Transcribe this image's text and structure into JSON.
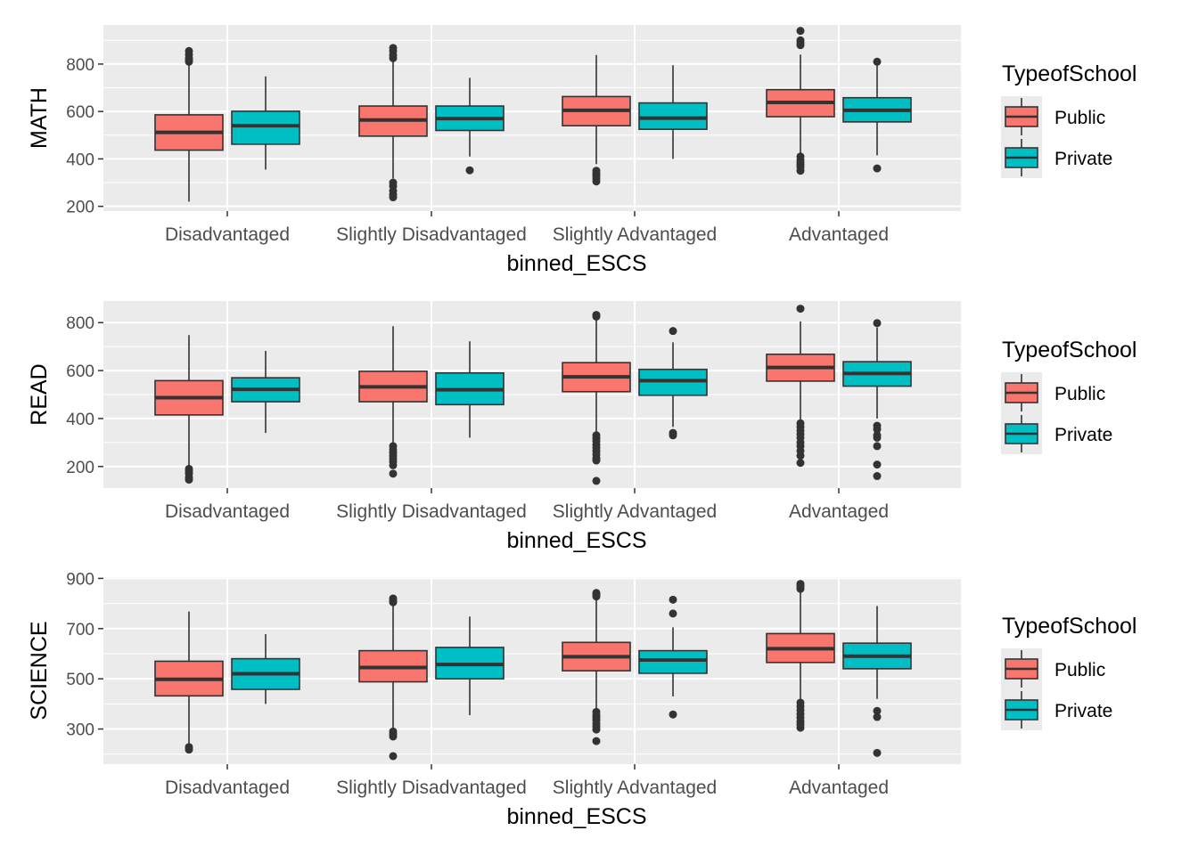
{
  "colors": {
    "panel_bg": "#EBEBEB",
    "grid_major": "#FFFFFF",
    "box_line": "#333333",
    "tick_text": "#4D4D4D",
    "title_text": "#000000",
    "series": {
      "Public": "#F8766D",
      "Private": "#00BFC4"
    }
  },
  "chart_data": [
    {
      "type": "boxplot",
      "ylabel": "MATH",
      "xlabel": "binned_ESCS",
      "categories": [
        "Disadvantaged",
        "Slightly Disadvantaged",
        "Slightly Advantaged",
        "Advantaged"
      ],
      "ylim": [
        180,
        965
      ],
      "yticks": [
        200,
        400,
        600,
        800
      ],
      "grid": true,
      "legend": {
        "title": "TypeofSchool",
        "placement": "right",
        "entries": [
          "Public",
          "Private"
        ]
      },
      "series": [
        {
          "name": "Public",
          "boxes": [
            {
              "min": 220,
              "q1": 437,
              "median": 512,
              "q3": 586,
              "max": 803,
              "outliers": [
                810,
                818,
                825,
                840,
                855
              ]
            },
            {
              "min": 318,
              "q1": 496,
              "median": 564,
              "q3": 623,
              "max": 818,
              "outliers": [
                825,
                838,
                855,
                868,
                300,
                285,
                265,
                250,
                238
              ]
            },
            {
              "min": 378,
              "q1": 540,
              "median": 605,
              "q3": 663,
              "max": 838,
              "outliers": [
                350,
                340,
                330,
                318,
                305
              ]
            },
            {
              "min": 425,
              "q1": 578,
              "median": 638,
              "q3": 692,
              "max": 840,
              "outliers": [
                940,
                900,
                890,
                880,
                410,
                395,
                385,
                375,
                365,
                350
              ]
            }
          ]
        },
        {
          "name": "Private",
          "boxes": [
            {
              "min": 355,
              "q1": 462,
              "median": 540,
              "q3": 601,
              "max": 748,
              "outliers": []
            },
            {
              "min": 410,
              "q1": 520,
              "median": 570,
              "q3": 623,
              "max": 742,
              "outliers": [
                352
              ]
            },
            {
              "min": 400,
              "q1": 525,
              "median": 572,
              "q3": 636,
              "max": 795,
              "outliers": []
            },
            {
              "min": 415,
              "q1": 556,
              "median": 605,
              "q3": 658,
              "max": 795,
              "outliers": [
                810,
                360
              ]
            }
          ]
        }
      ]
    },
    {
      "type": "boxplot",
      "ylabel": "READ",
      "xlabel": "binned_ESCS",
      "categories": [
        "Disadvantaged",
        "Slightly Disadvantaged",
        "Slightly Advantaged",
        "Advantaged"
      ],
      "ylim": [
        110,
        890
      ],
      "yticks": [
        200,
        400,
        600,
        800
      ],
      "grid": true,
      "legend": {
        "title": "TypeofSchool",
        "placement": "right",
        "entries": [
          "Public",
          "Private"
        ]
      },
      "series": [
        {
          "name": "Public",
          "boxes": [
            {
              "min": 200,
              "q1": 415,
              "median": 487,
              "q3": 558,
              "max": 748,
              "outliers": [
                190,
                180,
                170,
                155,
                145
              ]
            },
            {
              "min": 290,
              "q1": 470,
              "median": 532,
              "q3": 597,
              "max": 785,
              "outliers": [
                285,
                270,
                258,
                245,
                232,
                220,
                205,
                170
              ]
            },
            {
              "min": 340,
              "q1": 512,
              "median": 574,
              "q3": 633,
              "max": 812,
              "outliers": [
                832,
                825,
                330,
                318,
                305,
                290,
                278,
                265,
                250,
                235,
                225,
                140
              ]
            },
            {
              "min": 385,
              "q1": 556,
              "median": 613,
              "q3": 668,
              "max": 805,
              "outliers": [
                858,
                380,
                365,
                350,
                335,
                320,
                300,
                285,
                265,
                245,
                215
              ]
            }
          ]
        },
        {
          "name": "Private",
          "boxes": [
            {
              "min": 340,
              "q1": 470,
              "median": 522,
              "q3": 570,
              "max": 682,
              "outliers": []
            },
            {
              "min": 320,
              "q1": 458,
              "median": 520,
              "q3": 590,
              "max": 722,
              "outliers": []
            },
            {
              "min": 365,
              "q1": 497,
              "median": 558,
              "q3": 605,
              "max": 718,
              "outliers": [
                765,
                340,
                330
              ]
            },
            {
              "min": 400,
              "q1": 535,
              "median": 588,
              "q3": 637,
              "max": 780,
              "outliers": [
                798,
                370,
                355,
                330,
                320,
                285,
                208,
                160
              ]
            }
          ]
        }
      ]
    },
    {
      "type": "boxplot",
      "ylabel": "SCIENCE",
      "xlabel": "binned_ESCS",
      "categories": [
        "Disadvantaged",
        "Slightly Disadvantaged",
        "Slightly Advantaged",
        "Advantaged"
      ],
      "ylim": [
        160,
        905
      ],
      "yticks": [
        300,
        500,
        700,
        900
      ],
      "grid": true,
      "legend": {
        "title": "TypeofSchool",
        "placement": "right",
        "entries": [
          "Public",
          "Private"
        ]
      },
      "series": [
        {
          "name": "Public",
          "boxes": [
            {
              "min": 238,
              "q1": 432,
              "median": 498,
              "q3": 570,
              "max": 768,
              "outliers": [
                228,
                218
              ]
            },
            {
              "min": 305,
              "q1": 488,
              "median": 545,
              "q3": 612,
              "max": 795,
              "outliers": [
                820,
                812,
                805,
                290,
                280,
                270,
                192
              ]
            },
            {
              "min": 375,
              "q1": 532,
              "median": 588,
              "q3": 645,
              "max": 815,
              "outliers": [
                842,
                835,
                828,
                368,
                355,
                345,
                335,
                322,
                310,
                298,
                252
              ]
            },
            {
              "min": 415,
              "q1": 565,
              "median": 620,
              "q3": 680,
              "max": 848,
              "outliers": [
                878,
                872,
                865,
                858,
                405,
                390,
                375,
                360,
                345,
                330,
                318,
                305
              ]
            }
          ]
        },
        {
          "name": "Private",
          "boxes": [
            {
              "min": 400,
              "q1": 458,
              "median": 520,
              "q3": 580,
              "max": 678,
              "outliers": []
            },
            {
              "min": 355,
              "q1": 500,
              "median": 557,
              "q3": 625,
              "max": 748,
              "outliers": []
            },
            {
              "min": 430,
              "q1": 522,
              "median": 575,
              "q3": 612,
              "max": 705,
              "outliers": [
                815,
                760,
                358
              ]
            },
            {
              "min": 420,
              "q1": 540,
              "median": 590,
              "q3": 642,
              "max": 790,
              "outliers": [
                372,
                348,
                205
              ]
            }
          ]
        }
      ]
    }
  ]
}
